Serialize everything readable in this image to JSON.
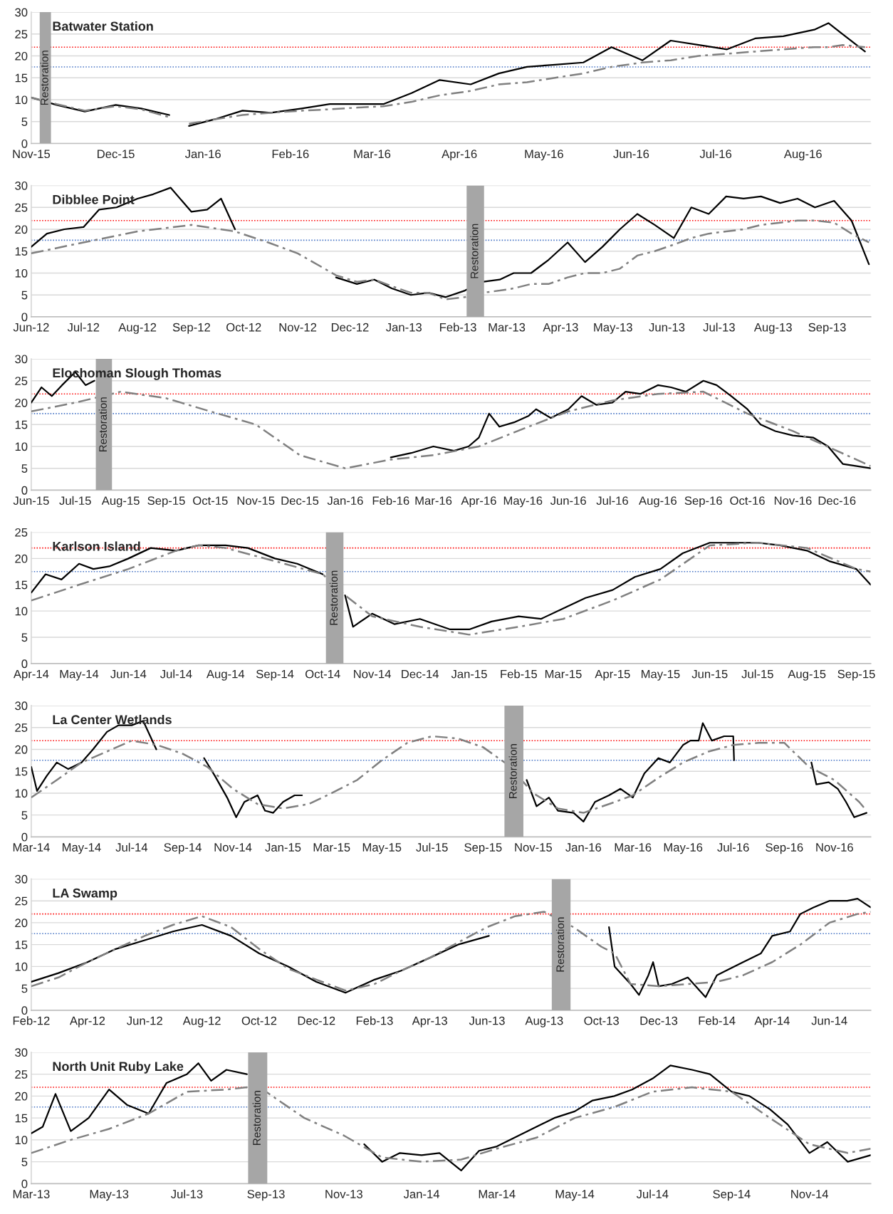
{
  "chart_data": [
    {
      "type": "line",
      "title": "Batwater Station",
      "xlim": [
        "2015-11-01",
        "2016-08-25"
      ],
      "ylim": [
        0,
        30
      ],
      "yticks": [
        0,
        5,
        10,
        15,
        20,
        25,
        30
      ],
      "grid": "y",
      "xticks": [
        {
          "value": "2015-11-01",
          "label": "Nov-15"
        },
        {
          "value": "2015-12-01",
          "label": "Dec-15"
        },
        {
          "value": "2016-01-01",
          "label": "Jan-16"
        },
        {
          "value": "2016-02-01",
          "label": "Feb-16"
        },
        {
          "value": "2016-03-01",
          "label": "Mar-16"
        },
        {
          "value": "2016-04-01",
          "label": "Apr-16"
        },
        {
          "value": "2016-05-01",
          "label": "May-16"
        },
        {
          "value": "2016-06-01",
          "label": "Jun-16"
        },
        {
          "value": "2016-07-01",
          "label": "Jul-16"
        },
        {
          "value": "2016-08-01",
          "label": "Aug-16"
        }
      ],
      "ref_lines": [
        {
          "axis": "y",
          "value": 22,
          "color": "#ff0000",
          "line_style": "dotted"
        },
        {
          "axis": "y",
          "value": 17.5,
          "color": "#4472c4",
          "line_style": "dotted"
        }
      ],
      "bands": [
        {
          "axis": "x",
          "from": "2015-11-04",
          "to": "2015-11-08",
          "label": "Restoration",
          "color": "#a6a6a6"
        }
      ],
      "series": [
        {
          "color": "#000000",
          "line_style": "solid",
          "x": [
            "2015-11-01",
            "2015-11-10",
            "2015-11-20",
            "2015-12-01",
            "2015-12-10",
            "2015-12-20",
            "2015-12-24",
            "2015-12-27",
            "2016-01-05",
            "2016-01-15",
            "2016-01-25",
            "2016-02-05",
            "2016-02-15",
            "2016-02-25",
            "2016-03-05",
            "2016-03-15",
            "2016-03-25",
            "2016-04-05",
            "2016-04-15",
            "2016-04-25",
            "2016-05-05",
            "2016-05-15",
            "2016-05-25",
            "2016-06-05",
            "2016-06-15",
            "2016-06-25",
            "2016-07-05",
            "2016-07-15",
            "2016-07-25",
            "2016-08-05",
            "2016-08-10",
            "2016-08-15",
            "2016-08-23"
          ],
          "values": [
            10.5,
            8.8,
            7.3,
            8.8,
            8,
            6.5,
            null,
            4,
            5.5,
            7.5,
            7,
            8,
            9,
            9,
            9,
            11.5,
            14.5,
            13.5,
            16,
            17.5,
            18,
            18.5,
            22,
            19,
            23.5,
            22.5,
            21.5,
            24,
            24.5,
            26,
            27.5,
            25,
            21
          ]
        },
        {
          "color": "#808080",
          "line_style": "dashed",
          "x": [
            "2015-11-01",
            "2015-11-10",
            "2015-11-20",
            "2015-12-01",
            "2015-12-10",
            "2015-12-20",
            "2015-12-24",
            "2015-12-27",
            "2016-01-05",
            "2016-01-15",
            "2016-01-25",
            "2016-02-05",
            "2016-02-15",
            "2016-02-25",
            "2016-03-05",
            "2016-03-15",
            "2016-03-25",
            "2016-04-05",
            "2016-04-15",
            "2016-04-25",
            "2016-05-05",
            "2016-05-15",
            "2016-05-25",
            "2016-06-05",
            "2016-06-15",
            "2016-06-25",
            "2016-07-05",
            "2016-07-15",
            "2016-07-25",
            "2016-08-05",
            "2016-08-10",
            "2016-08-15",
            "2016-08-23"
          ],
          "values": [
            10.5,
            9,
            7.5,
            8.5,
            7.8,
            6,
            null,
            4.5,
            5.5,
            6.5,
            7,
            7.5,
            7.8,
            8.2,
            8.5,
            9.5,
            11,
            12,
            13.5,
            14,
            15,
            16,
            17.5,
            18.5,
            19,
            20,
            20.5,
            21,
            21.5,
            22,
            22,
            22.5,
            22
          ]
        }
      ]
    },
    {
      "type": "line",
      "title": "Dibblee Point",
      "xlim": [
        "2012-06-01",
        "2013-09-26"
      ],
      "ylim": [
        0,
        30
      ],
      "yticks": [
        0,
        5,
        10,
        15,
        20,
        25,
        30
      ],
      "grid": "y",
      "xticks": [
        {
          "value": "2012-06-01",
          "label": "Jun-12"
        },
        {
          "value": "2012-07-01",
          "label": "Jul-12"
        },
        {
          "value": "2012-08-01",
          "label": "Aug-12"
        },
        {
          "value": "2012-09-01",
          "label": "Sep-12"
        },
        {
          "value": "2012-10-01",
          "label": "Oct-12"
        },
        {
          "value": "2012-11-01",
          "label": "Nov-12"
        },
        {
          "value": "2012-12-01",
          "label": "Dec-12"
        },
        {
          "value": "2013-01-01",
          "label": "Jan-13"
        },
        {
          "value": "2013-02-01",
          "label": "Feb-13"
        },
        {
          "value": "2013-03-01",
          "label": "Mar-13"
        },
        {
          "value": "2013-04-01",
          "label": "Apr-13"
        },
        {
          "value": "2013-05-01",
          "label": "May-13"
        },
        {
          "value": "2013-06-01",
          "label": "Jun-13"
        },
        {
          "value": "2013-07-01",
          "label": "Jul-13"
        },
        {
          "value": "2013-08-01",
          "label": "Aug-13"
        },
        {
          "value": "2013-09-01",
          "label": "Sep-13"
        }
      ],
      "ref_lines": [
        {
          "axis": "y",
          "value": 22,
          "color": "#ff0000",
          "line_style": "dotted"
        },
        {
          "axis": "y",
          "value": 17.5,
          "color": "#4472c4",
          "line_style": "dotted"
        }
      ],
      "bands": [
        {
          "axis": "x",
          "from": "2013-02-06",
          "to": "2013-02-16",
          "label": "Restoration",
          "color": "#a6a6a6"
        }
      ],
      "series": [
        {
          "color": "#000000",
          "line_style": "solid",
          "x": [
            "2012-06-01",
            "2012-06-10",
            "2012-06-20",
            "2012-07-01",
            "2012-07-10",
            "2012-07-20",
            "2012-08-01",
            "2012-08-10",
            "2012-08-20",
            "2012-09-01",
            "2012-09-10",
            "2012-09-18",
            "2012-09-26",
            "2012-10-15",
            "2012-11-23",
            "2012-12-05",
            "2012-12-15",
            "2012-12-25",
            "2013-01-05",
            "2013-01-15",
            "2013-01-25",
            "2013-02-05",
            "2013-02-15",
            "2013-02-25",
            "2013-03-05",
            "2013-03-15",
            "2013-03-25",
            "2013-04-05",
            "2013-04-15",
            "2013-04-25",
            "2013-05-05",
            "2013-05-15",
            "2013-05-25",
            "2013-06-05",
            "2013-06-15",
            "2013-06-25",
            "2013-07-05",
            "2013-07-15",
            "2013-07-25",
            "2013-08-05",
            "2013-08-15",
            "2013-08-25",
            "2013-09-05",
            "2013-09-15",
            "2013-09-25"
          ],
          "values": [
            16,
            19,
            20,
            20.5,
            24.5,
            25,
            27,
            28,
            29.5,
            24,
            24.5,
            27,
            20,
            null,
            9,
            7.5,
            8.5,
            6.5,
            5,
            5.5,
            4.5,
            6,
            8,
            8.5,
            10,
            10,
            13,
            17,
            12.5,
            16,
            20,
            23.5,
            21,
            18,
            25,
            23.5,
            27.5,
            27,
            27.5,
            26,
            27,
            25,
            26.5,
            22,
            12
          ]
        },
        {
          "color": "#808080",
          "line_style": "dashed",
          "x": [
            "2012-06-01",
            "2012-07-01",
            "2012-08-01",
            "2012-09-01",
            "2012-09-26",
            "2012-10-15",
            "2012-11-01",
            "2012-11-23",
            "2012-12-05",
            "2012-12-15",
            "2012-12-25",
            "2013-01-05",
            "2013-01-15",
            "2013-01-25",
            "2013-02-05",
            "2013-02-15",
            "2013-02-25",
            "2013-03-05",
            "2013-03-15",
            "2013-03-25",
            "2013-04-05",
            "2013-04-15",
            "2013-04-25",
            "2013-05-05",
            "2013-05-15",
            "2013-05-25",
            "2013-06-05",
            "2013-06-15",
            "2013-06-25",
            "2013-07-05",
            "2013-07-15",
            "2013-07-25",
            "2013-08-05",
            "2013-08-15",
            "2013-08-25",
            "2013-09-05",
            "2013-09-15",
            "2013-09-25"
          ],
          "values": [
            14.5,
            17,
            19.5,
            21,
            19.5,
            17,
            14.5,
            9.5,
            8,
            8.5,
            7,
            5.5,
            5.5,
            4,
            4.5,
            5.5,
            6,
            6.5,
            7.5,
            7.5,
            9,
            10,
            10,
            11,
            14,
            15,
            16.5,
            18,
            19,
            19.5,
            20,
            21,
            21.5,
            22,
            22,
            21.5,
            19,
            17
          ]
        }
      ]
    },
    {
      "type": "line",
      "title": "Elochoman Slough Thomas",
      "xlim": [
        "2015-06-01",
        "2016-12-24"
      ],
      "ylim": [
        0,
        30
      ],
      "yticks": [
        0,
        5,
        10,
        15,
        20,
        25,
        30
      ],
      "grid": "y",
      "xticks": [
        {
          "value": "2015-06-01",
          "label": "Jun-15"
        },
        {
          "value": "2015-07-01",
          "label": "Jul-15"
        },
        {
          "value": "2015-08-01",
          "label": "Aug-15"
        },
        {
          "value": "2015-09-01",
          "label": "Sep-15"
        },
        {
          "value": "2015-10-01",
          "label": "Oct-15"
        },
        {
          "value": "2015-11-01",
          "label": "Nov-15"
        },
        {
          "value": "2015-12-01",
          "label": "Dec-15"
        },
        {
          "value": "2016-01-01",
          "label": "Jan-16"
        },
        {
          "value": "2016-02-01",
          "label": "Feb-16"
        },
        {
          "value": "2016-03-01",
          "label": "Mar-16"
        },
        {
          "value": "2016-04-01",
          "label": "Apr-16"
        },
        {
          "value": "2016-05-01",
          "label": "May-16"
        },
        {
          "value": "2016-06-01",
          "label": "Jun-16"
        },
        {
          "value": "2016-07-01",
          "label": "Jul-16"
        },
        {
          "value": "2016-08-01",
          "label": "Aug-16"
        },
        {
          "value": "2016-09-01",
          "label": "Sep-16"
        },
        {
          "value": "2016-10-01",
          "label": "Oct-16"
        },
        {
          "value": "2016-11-01",
          "label": "Nov-16"
        },
        {
          "value": "2016-12-01",
          "label": "Dec-16"
        }
      ],
      "ref_lines": [
        {
          "axis": "y",
          "value": 22,
          "color": "#ff0000",
          "line_style": "dotted"
        },
        {
          "axis": "y",
          "value": 17.5,
          "color": "#4472c4",
          "line_style": "dotted"
        }
      ],
      "bands": [
        {
          "axis": "x",
          "from": "2015-07-15",
          "to": "2015-07-26",
          "label": "Restoration",
          "color": "#a6a6a6"
        }
      ],
      "series": [
        {
          "color": "#000000",
          "line_style": "solid",
          "x": [
            "2015-06-01",
            "2015-06-08",
            "2015-06-15",
            "2015-06-22",
            "2015-07-01",
            "2015-07-08",
            "2015-07-14",
            "2015-07-20",
            "2016-02-01",
            "2016-02-15",
            "2016-03-01",
            "2016-03-15",
            "2016-03-25",
            "2016-04-01",
            "2016-04-08",
            "2016-04-15",
            "2016-04-25",
            "2016-05-05",
            "2016-05-10",
            "2016-05-20",
            "2016-06-01",
            "2016-06-10",
            "2016-06-20",
            "2016-07-01",
            "2016-07-10",
            "2016-07-20",
            "2016-08-01",
            "2016-08-10",
            "2016-08-20",
            "2016-09-01",
            "2016-09-10",
            "2016-09-20",
            "2016-10-01",
            "2016-10-10",
            "2016-10-20",
            "2016-11-01",
            "2016-11-15",
            "2016-11-25",
            "2016-12-05",
            "2016-12-24"
          ],
          "values": [
            20,
            23.5,
            21.5,
            24,
            27,
            24,
            25,
            null,
            7.5,
            8.5,
            10,
            9,
            10,
            12,
            17.5,
            14.5,
            15.5,
            17,
            18.5,
            16.5,
            18.5,
            21.5,
            19.5,
            20,
            22.5,
            22,
            24,
            23.5,
            22.5,
            25,
            24,
            21.5,
            18.5,
            15,
            13.5,
            12.5,
            12,
            10,
            6,
            5
          ]
        },
        {
          "color": "#808080",
          "line_style": "dashed",
          "x": [
            "2015-06-01",
            "2015-07-01",
            "2015-08-01",
            "2015-09-01",
            "2015-10-01",
            "2015-11-01",
            "2015-12-01",
            "2016-01-01",
            "2016-02-01",
            "2016-03-01",
            "2016-04-01",
            "2016-05-01",
            "2016-06-01",
            "2016-07-01",
            "2016-08-01",
            "2016-09-01",
            "2016-10-01",
            "2016-11-01",
            "2016-12-01",
            "2016-12-24"
          ],
          "values": [
            18,
            20,
            22.5,
            21,
            18,
            15,
            8,
            5,
            7,
            8,
            10,
            14,
            18,
            20.5,
            22,
            22.5,
            17.5,
            13.5,
            9,
            5.5
          ]
        }
      ]
    },
    {
      "type": "line",
      "title": "Karlson Island",
      "xlim": [
        "2014-04-01",
        "2015-09-10"
      ],
      "ylim": [
        0,
        25
      ],
      "yticks": [
        0,
        5,
        10,
        15,
        20,
        25
      ],
      "grid": "y",
      "xticks": [
        {
          "value": "2014-04-01",
          "label": "Apr-14"
        },
        {
          "value": "2014-05-01",
          "label": "May-14"
        },
        {
          "value": "2014-06-01",
          "label": "Jun-14"
        },
        {
          "value": "2014-07-01",
          "label": "Jul-14"
        },
        {
          "value": "2014-08-01",
          "label": "Aug-14"
        },
        {
          "value": "2014-09-01",
          "label": "Sep-14"
        },
        {
          "value": "2014-10-01",
          "label": "Oct-14"
        },
        {
          "value": "2014-11-01",
          "label": "Nov-14"
        },
        {
          "value": "2014-12-01",
          "label": "Dec-14"
        },
        {
          "value": "2015-01-01",
          "label": "Jan-15"
        },
        {
          "value": "2015-02-01",
          "label": "Feb-15"
        },
        {
          "value": "2015-03-01",
          "label": "Mar-15"
        },
        {
          "value": "2015-04-01",
          "label": "Apr-15"
        },
        {
          "value": "2015-05-01",
          "label": "May-15"
        },
        {
          "value": "2015-06-01",
          "label": "Jun-15"
        },
        {
          "value": "2015-07-01",
          "label": "Jul-15"
        },
        {
          "value": "2015-08-01",
          "label": "Aug-15"
        },
        {
          "value": "2015-09-01",
          "label": "Sep-15"
        }
      ],
      "ref_lines": [
        {
          "axis": "y",
          "value": 22,
          "color": "#ff0000",
          "line_style": "dotted"
        },
        {
          "axis": "y",
          "value": 17.5,
          "color": "#4472c4",
          "line_style": "dotted"
        }
      ],
      "bands": [
        {
          "axis": "x",
          "from": "2014-10-03",
          "to": "2014-10-14",
          "label": "Restoration",
          "color": "#a6a6a6"
        }
      ],
      "series": [
        {
          "color": "#000000",
          "line_style": "solid",
          "x": [
            "2014-04-01",
            "2014-04-10",
            "2014-04-20",
            "2014-05-01",
            "2014-05-10",
            "2014-05-20",
            "2014-06-01",
            "2014-06-15",
            "2014-07-01",
            "2014-07-15",
            "2014-08-01",
            "2014-08-15",
            "2014-09-01",
            "2014-09-15",
            "2014-10-01",
            "2014-10-08",
            "2014-10-15",
            "2014-10-20",
            "2014-11-01",
            "2014-11-15",
            "2014-12-01",
            "2014-12-20",
            "2015-01-01",
            "2015-01-15",
            "2015-02-01",
            "2015-02-15",
            "2015-03-01",
            "2015-03-15",
            "2015-04-01",
            "2015-04-15",
            "2015-05-01",
            "2015-05-15",
            "2015-06-01",
            "2015-06-15",
            "2015-07-01",
            "2015-07-15",
            "2015-08-01",
            "2015-08-15",
            "2015-09-01",
            "2015-09-10"
          ],
          "values": [
            13.5,
            17,
            16,
            19,
            18,
            18.5,
            20,
            22,
            21.5,
            22.5,
            22.5,
            22,
            20,
            19,
            17,
            null,
            13,
            7,
            9.5,
            7.5,
            8.5,
            6.5,
            6.5,
            8,
            9,
            8.5,
            10.5,
            12.5,
            14,
            16.5,
            18,
            21,
            23,
            23,
            23,
            22.5,
            21.5,
            19.5,
            18,
            15
          ]
        },
        {
          "color": "#808080",
          "line_style": "dashed",
          "x": [
            "2014-04-01",
            "2014-05-01",
            "2014-06-01",
            "2014-07-01",
            "2014-07-15",
            "2014-08-01",
            "2014-09-01",
            "2014-10-01",
            "2014-10-15",
            "2014-11-01",
            "2014-12-01",
            "2015-01-01",
            "2015-02-01",
            "2015-03-01",
            "2015-04-01",
            "2015-05-01",
            "2015-06-01",
            "2015-07-01",
            "2015-08-01",
            "2015-09-01",
            "2015-09-10"
          ],
          "values": [
            12,
            15,
            18,
            21.5,
            22.5,
            22,
            19.5,
            17,
            13,
            9,
            7,
            5.5,
            7,
            8.5,
            12,
            16,
            22.5,
            23,
            22,
            18,
            17.5
          ]
        }
      ]
    },
    {
      "type": "line",
      "title": "La Center Wetlands",
      "xlim": [
        "2014-03-01",
        "2016-12-15"
      ],
      "ylim": [
        0,
        30
      ],
      "yticks": [
        0,
        5,
        10,
        15,
        20,
        25,
        30
      ],
      "grid": "y",
      "xticks": [
        {
          "value": "2014-03-01",
          "label": "Mar-14"
        },
        {
          "value": "2014-05-01",
          "label": "May-14"
        },
        {
          "value": "2014-07-01",
          "label": "Jul-14"
        },
        {
          "value": "2014-09-01",
          "label": "Sep-14"
        },
        {
          "value": "2014-11-01",
          "label": "Nov-14"
        },
        {
          "value": "2015-01-01",
          "label": "Jan-15"
        },
        {
          "value": "2015-03-01",
          "label": "Mar-15"
        },
        {
          "value": "2015-05-01",
          "label": "May-15"
        },
        {
          "value": "2015-07-01",
          "label": "Jul-15"
        },
        {
          "value": "2015-09-01",
          "label": "Sep-15"
        },
        {
          "value": "2015-11-01",
          "label": "Nov-15"
        },
        {
          "value": "2016-01-01",
          "label": "Jan-16"
        },
        {
          "value": "2016-03-01",
          "label": "Mar-16"
        },
        {
          "value": "2016-05-01",
          "label": "May-16"
        },
        {
          "value": "2016-07-01",
          "label": "Jul-16"
        },
        {
          "value": "2016-09-01",
          "label": "Sep-16"
        },
        {
          "value": "2016-11-01",
          "label": "Nov-16"
        }
      ],
      "ref_lines": [
        {
          "axis": "y",
          "value": 22,
          "color": "#ff0000",
          "line_style": "dotted"
        },
        {
          "axis": "y",
          "value": 17.5,
          "color": "#4472c4",
          "line_style": "dotted"
        }
      ],
      "bands": [
        {
          "axis": "x",
          "from": "2015-09-27",
          "to": "2015-10-20",
          "label": "Restoration",
          "color": "#a6a6a6"
        }
      ],
      "series": [
        {
          "color": "#000000",
          "line_style": "solid",
          "x": [
            "2014-03-01",
            "2014-03-08",
            "2014-03-20",
            "2014-04-01",
            "2014-04-15",
            "2014-05-01",
            "2014-05-15",
            "2014-06-01",
            "2014-06-15",
            "2014-07-01",
            "2014-07-15",
            "2014-07-31",
            "2014-08-20",
            "2014-09-27",
            "2014-10-10",
            "2014-10-25",
            "2014-11-05",
            "2014-11-15",
            "2014-12-01",
            "2014-12-10",
            "2014-12-20",
            "2015-01-01",
            "2015-01-15",
            "2015-01-24",
            "2015-06-01",
            "2015-10-24",
            "2015-11-05",
            "2015-11-20",
            "2015-12-01",
            "2015-12-20",
            "2016-01-01",
            "2016-01-15",
            "2016-02-01",
            "2016-02-15",
            "2016-03-01",
            "2016-03-15",
            "2016-04-01",
            "2016-04-15",
            "2016-05-01",
            "2016-05-10",
            "2016-05-20",
            "2016-05-25",
            "2016-06-05",
            "2016-06-20",
            "2016-07-01",
            "2016-07-02",
            "2016-08-15",
            "2016-10-04",
            "2016-10-10",
            "2016-10-25",
            "2016-11-05",
            "2016-11-15",
            "2016-11-25",
            "2016-12-10"
          ],
          "values": [
            16,
            10.5,
            14,
            17,
            15.5,
            17,
            20,
            24,
            25.5,
            25.5,
            26.5,
            20,
            null,
            18,
            14,
            9,
            4.5,
            8,
            9.5,
            6,
            5.5,
            8,
            9.5,
            9.5,
            null,
            13,
            7,
            9,
            6,
            5.5,
            3.5,
            8,
            9.5,
            11,
            9,
            14.5,
            18,
            17,
            21,
            22,
            22,
            26,
            22,
            23,
            23,
            17.5,
            null,
            17,
            12,
            12.5,
            11,
            8,
            4.5,
            5.5
          ]
        },
        {
          "color": "#808080",
          "line_style": "dashed",
          "x": [
            "2014-03-01",
            "2014-04-01",
            "2014-05-01",
            "2014-06-01",
            "2014-07-01",
            "2014-08-01",
            "2014-09-01",
            "2014-10-01",
            "2014-11-01",
            "2014-12-01",
            "2015-01-01",
            "2015-02-01",
            "2015-03-01",
            "2015-04-01",
            "2015-05-01",
            "2015-06-01",
            "2015-07-01",
            "2015-08-01",
            "2015-09-01",
            "2015-10-01",
            "2015-11-01",
            "2015-12-01",
            "2016-01-01",
            "2016-02-01",
            "2016-03-01",
            "2016-04-01",
            "2016-05-01",
            "2016-06-01",
            "2016-07-01",
            "2016-08-01",
            "2016-09-01",
            "2016-10-01",
            "2016-11-01",
            "2016-12-01",
            "2016-12-10"
          ],
          "values": [
            9,
            13,
            17,
            19.5,
            22,
            21,
            19,
            16,
            11,
            7.5,
            6.5,
            7.5,
            10,
            13,
            17.5,
            21.5,
            23,
            22.5,
            20.5,
            16.5,
            10,
            6.5,
            5.5,
            7.5,
            9.5,
            13.5,
            17,
            19.5,
            21,
            21.5,
            21.5,
            16,
            13,
            8,
            6
          ]
        }
      ]
    },
    {
      "type": "line",
      "title": "LA Swamp",
      "xlim": [
        "2012-02-01",
        "2014-07-15"
      ],
      "ylim": [
        0,
        30
      ],
      "yticks": [
        0,
        5,
        10,
        15,
        20,
        25,
        30
      ],
      "grid": "y",
      "xticks": [
        {
          "value": "2012-02-01",
          "label": "Feb-12"
        },
        {
          "value": "2012-04-01",
          "label": "Apr-12"
        },
        {
          "value": "2012-06-01",
          "label": "Jun-12"
        },
        {
          "value": "2012-08-01",
          "label": "Aug-12"
        },
        {
          "value": "2012-10-01",
          "label": "Oct-12"
        },
        {
          "value": "2012-12-01",
          "label": "Dec-12"
        },
        {
          "value": "2013-02-01",
          "label": "Feb-13"
        },
        {
          "value": "2013-04-01",
          "label": "Apr-13"
        },
        {
          "value": "2013-06-01",
          "label": "Jun-13"
        },
        {
          "value": "2013-08-01",
          "label": "Aug-13"
        },
        {
          "value": "2013-10-01",
          "label": "Oct-13"
        },
        {
          "value": "2013-12-01",
          "label": "Dec-13"
        },
        {
          "value": "2014-02-01",
          "label": "Feb-14"
        },
        {
          "value": "2014-04-01",
          "label": "Apr-14"
        },
        {
          "value": "2014-06-01",
          "label": "Jun-14"
        }
      ],
      "ref_lines": [
        {
          "axis": "y",
          "value": 22,
          "color": "#ff0000",
          "line_style": "dotted"
        },
        {
          "axis": "y",
          "value": 17.5,
          "color": "#4472c4",
          "line_style": "dotted"
        }
      ],
      "bands": [
        {
          "axis": "x",
          "from": "2013-08-09",
          "to": "2013-08-29",
          "label": "Restoration",
          "color": "#a6a6a6"
        }
      ],
      "series": [
        {
          "color": "#000000",
          "line_style": "solid",
          "x": [
            "2012-02-01",
            "2012-03-01",
            "2012-04-01",
            "2012-05-01",
            "2012-06-01",
            "2012-07-01",
            "2012-08-01",
            "2012-09-01",
            "2012-10-01",
            "2012-11-01",
            "2012-12-01",
            "2013-01-01",
            "2013-02-01",
            "2013-03-01",
            "2013-04-01",
            "2013-05-01",
            "2013-06-03",
            "2013-07-15",
            "2013-10-09",
            "2013-10-15",
            "2013-11-01",
            "2013-11-10",
            "2013-11-20",
            "2013-11-25",
            "2013-12-01",
            "2013-12-15",
            "2014-01-01",
            "2014-01-20",
            "2014-02-01",
            "2014-03-01",
            "2014-03-20",
            "2014-04-01",
            "2014-04-20",
            "2014-05-01",
            "2014-05-15",
            "2014-06-01",
            "2014-06-20",
            "2014-07-01",
            "2014-07-15"
          ],
          "values": [
            6.5,
            8.5,
            11,
            14,
            16,
            18,
            19.5,
            17,
            13,
            10,
            6.5,
            4,
            7,
            9,
            12,
            15,
            17,
            null,
            19,
            10,
            6,
            3.5,
            8,
            11,
            5.5,
            6,
            7.5,
            3,
            8,
            11,
            13,
            17,
            18,
            22,
            23.5,
            25,
            25,
            25.5,
            23.5
          ]
        },
        {
          "color": "#808080",
          "line_style": "dashed",
          "x": [
            "2012-02-01",
            "2012-03-01",
            "2012-04-01",
            "2012-05-01",
            "2012-06-01",
            "2012-07-01",
            "2012-08-01",
            "2012-09-01",
            "2012-10-01",
            "2012-11-01",
            "2012-12-01",
            "2013-01-01",
            "2013-02-01",
            "2013-03-01",
            "2013-04-01",
            "2013-05-01",
            "2013-06-01",
            "2013-07-01",
            "2013-08-01",
            "2013-09-01",
            "2013-10-01",
            "2013-10-15",
            "2013-11-01",
            "2013-12-01",
            "2014-01-01",
            "2014-02-01",
            "2014-03-01",
            "2014-04-01",
            "2014-05-01",
            "2014-06-01",
            "2014-07-01",
            "2014-07-15"
          ],
          "values": [
            5.5,
            7.5,
            11,
            14,
            17,
            19.5,
            21.5,
            19,
            14,
            9.5,
            7,
            4.5,
            6,
            9,
            12,
            15.5,
            19,
            21.5,
            22.5,
            19,
            14.5,
            13,
            6,
            5.5,
            6,
            6.5,
            8,
            11,
            15,
            20,
            22,
            22.5
          ]
        }
      ]
    },
    {
      "type": "line",
      "title": "North Unit Ruby Lake",
      "xlim": [
        "2013-03-01",
        "2014-12-19"
      ],
      "ylim": [
        0,
        30
      ],
      "yticks": [
        0,
        5,
        10,
        15,
        20,
        25,
        30
      ],
      "grid": "y",
      "xticks": [
        {
          "value": "2013-03-01",
          "label": "Mar-13"
        },
        {
          "value": "2013-05-01",
          "label": "May-13"
        },
        {
          "value": "2013-07-01",
          "label": "Jul-13"
        },
        {
          "value": "2013-09-01",
          "label": "Sep-13"
        },
        {
          "value": "2013-11-01",
          "label": "Nov-13"
        },
        {
          "value": "2014-01-01",
          "label": "Jan-14"
        },
        {
          "value": "2014-03-01",
          "label": "Mar-14"
        },
        {
          "value": "2014-05-01",
          "label": "May-14"
        },
        {
          "value": "2014-07-01",
          "label": "Jul-14"
        },
        {
          "value": "2014-09-01",
          "label": "Sep-14"
        },
        {
          "value": "2014-11-01",
          "label": "Nov-14"
        }
      ],
      "ref_lines": [
        {
          "axis": "y",
          "value": 22,
          "color": "#ff0000",
          "line_style": "dotted"
        },
        {
          "axis": "y",
          "value": 17.5,
          "color": "#4472c4",
          "line_style": "dotted"
        }
      ],
      "bands": [
        {
          "axis": "x",
          "from": "2013-08-18",
          "to": "2013-09-02",
          "label": "Restoration",
          "color": "#a6a6a6"
        }
      ],
      "series": [
        {
          "color": "#000000",
          "line_style": "solid",
          "x": [
            "2013-03-01",
            "2013-03-10",
            "2013-03-20",
            "2013-04-01",
            "2013-04-15",
            "2013-05-01",
            "2013-05-15",
            "2013-06-01",
            "2013-06-15",
            "2013-07-01",
            "2013-07-10",
            "2013-07-20",
            "2013-08-01",
            "2013-08-17",
            "2013-10-01",
            "2013-11-17",
            "2013-12-01",
            "2013-12-15",
            "2014-01-01",
            "2014-01-15",
            "2014-02-01",
            "2014-02-15",
            "2014-03-01",
            "2014-04-01",
            "2014-04-15",
            "2014-05-01",
            "2014-05-15",
            "2014-06-01",
            "2014-06-15",
            "2014-07-01",
            "2014-07-15",
            "2014-08-01",
            "2014-08-15",
            "2014-09-01",
            "2014-09-15",
            "2014-10-01",
            "2014-10-15",
            "2014-11-01",
            "2014-11-15",
            "2014-12-01",
            "2014-12-19"
          ],
          "values": [
            11.5,
            13,
            20.5,
            12,
            15,
            21.5,
            18,
            16,
            23,
            25,
            27.5,
            23.5,
            26,
            25,
            null,
            9,
            5,
            7,
            6.5,
            7,
            3,
            7.5,
            8.5,
            13,
            15,
            16.5,
            19,
            20,
            21.5,
            24,
            27,
            26,
            25,
            21,
            20,
            17,
            13.5,
            7,
            9.5,
            5,
            6.5
          ]
        },
        {
          "color": "#808080",
          "line_style": "dashed",
          "x": [
            "2013-03-01",
            "2013-04-01",
            "2013-05-01",
            "2013-06-01",
            "2013-07-01",
            "2013-08-01",
            "2013-08-17",
            "2013-09-01",
            "2013-10-01",
            "2013-11-01",
            "2013-12-01",
            "2014-01-01",
            "2014-02-01",
            "2014-03-01",
            "2014-04-01",
            "2014-05-01",
            "2014-06-01",
            "2014-07-01",
            "2014-08-01",
            "2014-09-01",
            "2014-10-01",
            "2014-11-01",
            "2014-12-01",
            "2014-12-19"
          ],
          "values": [
            7,
            10,
            12.5,
            16,
            21,
            21.5,
            22,
            21,
            15,
            11,
            6,
            5,
            5.5,
            8,
            10.5,
            15,
            17.5,
            21,
            22,
            21,
            15,
            9,
            7,
            8
          ]
        }
      ]
    }
  ]
}
